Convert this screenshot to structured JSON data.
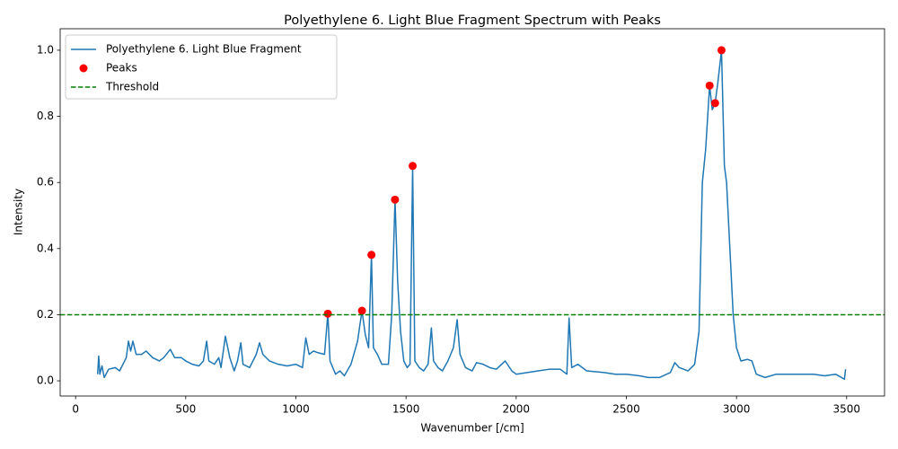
{
  "chart_data": {
    "type": "line",
    "title": "Polyethylene 6. Light Blue Fragment Spectrum with Peaks",
    "xlabel": "Wavenumber [/cm]",
    "ylabel": "Intensity",
    "xlim": [
      -70,
      3672
    ],
    "ylim": [
      -0.046,
      1.065
    ],
    "xticks": [
      0,
      500,
      1000,
      1500,
      2000,
      2500,
      3000,
      3500
    ],
    "yticks": [
      {
        "value": 0,
        "label": "0.0"
      },
      0.2,
      0.4,
      0.6,
      0.8,
      {
        "value": 1,
        "label": "1.0"
      }
    ],
    "legend": "upper left",
    "x": [
      100,
      105,
      110,
      120,
      130,
      150,
      180,
      200,
      230,
      240,
      250,
      260,
      275,
      300,
      320,
      350,
      380,
      400,
      430,
      450,
      480,
      500,
      530,
      560,
      580,
      595,
      605,
      630,
      650,
      660,
      680,
      700,
      720,
      735,
      750,
      760,
      790,
      820,
      835,
      850,
      880,
      920,
      960,
      1000,
      1030,
      1045,
      1060,
      1080,
      1100,
      1130,
      1145,
      1155,
      1180,
      1200,
      1220,
      1250,
      1280,
      1300,
      1315,
      1330,
      1343,
      1352,
      1370,
      1390,
      1420,
      1435,
      1450,
      1462,
      1475,
      1490,
      1505,
      1518,
      1530,
      1540,
      1560,
      1580,
      1600,
      1615,
      1625,
      1645,
      1665,
      1690,
      1715,
      1732,
      1745,
      1770,
      1800,
      1820,
      1850,
      1880,
      1910,
      1950,
      1980,
      2000,
      2050,
      2100,
      2150,
      2200,
      2230,
      2240,
      2252,
      2280,
      2320,
      2400,
      2450,
      2500,
      2560,
      2600,
      2650,
      2700,
      2720,
      2740,
      2780,
      2810,
      2830,
      2845,
      2860,
      2878,
      2890,
      2903,
      2915,
      2932,
      2945,
      2955,
      2970,
      2985,
      3000,
      3020,
      3050,
      3070,
      3090,
      3130,
      3180,
      3250,
      3300,
      3350,
      3400,
      3450,
      3490,
      3495
    ],
    "series": [
      {
        "name": "Polyethylene 6. Light Blue Fragment",
        "color": "#1f77b4",
        "values": [
          0.02,
          0.075,
          0.02,
          0.045,
          0.01,
          0.035,
          0.04,
          0.03,
          0.07,
          0.12,
          0.09,
          0.12,
          0.08,
          0.08,
          0.09,
          0.07,
          0.06,
          0.07,
          0.095,
          0.07,
          0.07,
          0.06,
          0.05,
          0.045,
          0.06,
          0.12,
          0.06,
          0.05,
          0.07,
          0.04,
          0.135,
          0.07,
          0.03,
          0.06,
          0.115,
          0.05,
          0.04,
          0.08,
          0.115,
          0.08,
          0.06,
          0.05,
          0.045,
          0.05,
          0.04,
          0.13,
          0.08,
          0.09,
          0.085,
          0.08,
          0.203,
          0.06,
          0.02,
          0.03,
          0.015,
          0.05,
          0.12,
          0.212,
          0.14,
          0.1,
          0.381,
          0.1,
          0.08,
          0.05,
          0.05,
          0.2,
          0.548,
          0.3,
          0.15,
          0.06,
          0.04,
          0.05,
          0.65,
          0.06,
          0.04,
          0.03,
          0.05,
          0.16,
          0.06,
          0.04,
          0.03,
          0.06,
          0.1,
          0.185,
          0.08,
          0.04,
          0.03,
          0.055,
          0.05,
          0.04,
          0.035,
          0.06,
          0.03,
          0.02,
          0.025,
          0.03,
          0.035,
          0.035,
          0.02,
          0.19,
          0.04,
          0.05,
          0.03,
          0.025,
          0.02,
          0.02,
          0.015,
          0.01,
          0.01,
          0.025,
          0.055,
          0.04,
          0.03,
          0.05,
          0.15,
          0.6,
          0.7,
          0.893,
          0.82,
          0.84,
          0.9,
          1.0,
          0.65,
          0.6,
          0.4,
          0.2,
          0.1,
          0.06,
          0.065,
          0.06,
          0.02,
          0.01,
          0.02,
          0.02,
          0.02,
          0.02,
          0.015,
          0.02,
          0.005,
          0.035
        ]
      }
    ],
    "peaks": {
      "name": "Peaks",
      "color": "#ff0000",
      "x": [
        1145,
        1300,
        1343,
        1450,
        1530,
        2878,
        2903,
        2932
      ],
      "values": [
        0.203,
        0.212,
        0.381,
        0.548,
        0.65,
        0.893,
        0.84,
        1.0
      ]
    },
    "threshold": {
      "name": "Threshold",
      "color": "#008000",
      "value": 0.2
    }
  }
}
